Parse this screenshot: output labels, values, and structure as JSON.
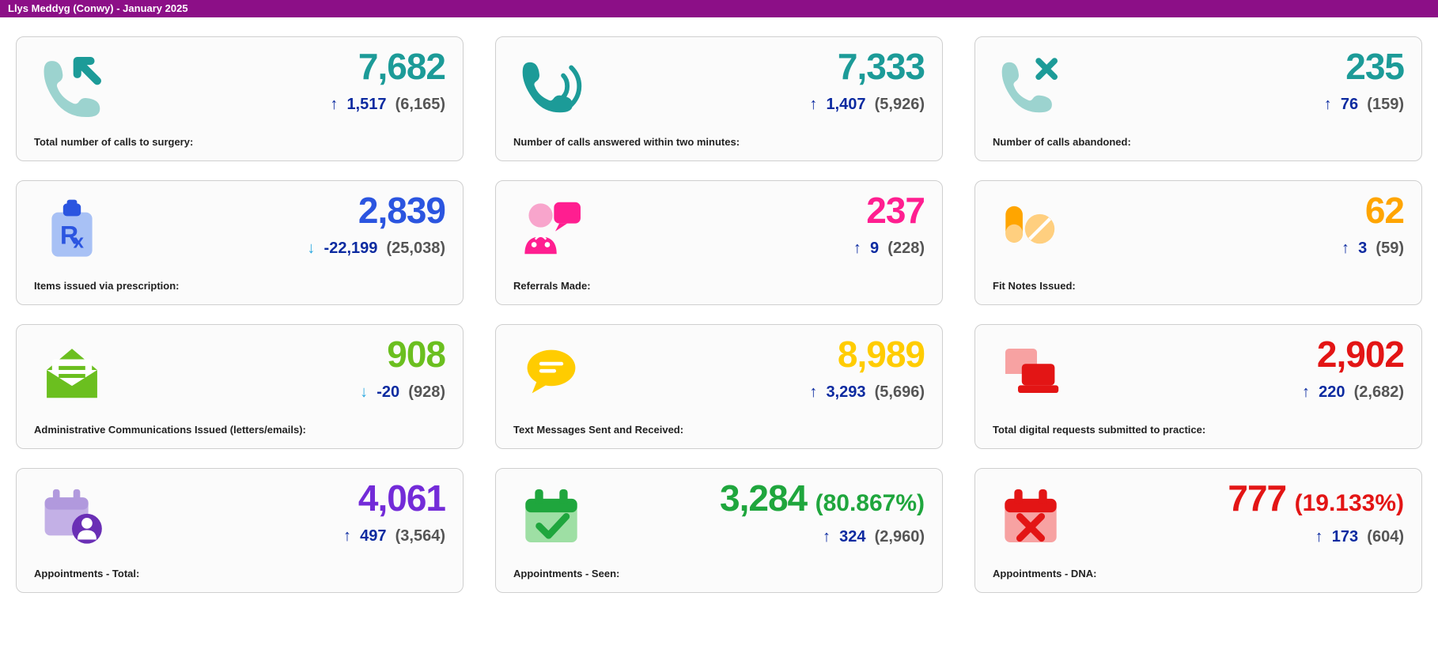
{
  "header": {
    "title": "Llys Meddyg (Conwy) - January 2025"
  },
  "palette": {
    "teal": "#1c9b98",
    "tealLight": "#9cd3cf",
    "blue": "#2b55e0",
    "blueArrow": "#0b2aa0",
    "downArrow": "#2aa8e0",
    "pink": "#ff1e90",
    "pinkLight": "#f8a5cc",
    "orange": "#ffa500",
    "orangeLight": "#ffcf7f",
    "green": "#6bbf1f",
    "yellow": "#ffcc00",
    "red": "#e31515",
    "redLight": "#f7a2a2",
    "purple": "#732bd8",
    "purpleLight": "#c3b0e6",
    "purpleDark": "#6a2fb5",
    "greenCheck": "#1fa63d",
    "greenCheckLight": "#9edfa4",
    "grey": "#555555"
  },
  "cards": [
    {
      "id": "calls-total",
      "icon": "phone-in",
      "value": "7,682",
      "valueColor": "#1c9b98",
      "direction": "up",
      "delta": "1,517",
      "prev": "(6,165)",
      "label": "Total number of calls to surgery:"
    },
    {
      "id": "calls-answered",
      "icon": "phone-wave",
      "value": "7,333",
      "valueColor": "#1c9b98",
      "direction": "up",
      "delta": "1,407",
      "prev": "(5,926)",
      "label": "Number of calls answered within two minutes:"
    },
    {
      "id": "calls-abandoned",
      "icon": "phone-x",
      "value": "235",
      "valueColor": "#1c9b98",
      "direction": "up",
      "delta": "76",
      "prev": "(159)",
      "label": "Number of calls abandoned:"
    },
    {
      "id": "prescriptions",
      "icon": "rx",
      "value": "2,839",
      "valueColor": "#2b55e0",
      "direction": "down",
      "delta": "-22,199",
      "prev": "(25,038)",
      "label": "Items issued via prescription:"
    },
    {
      "id": "referrals",
      "icon": "referral",
      "value": "237",
      "valueColor": "#ff1e90",
      "direction": "up",
      "delta": "9",
      "prev": "(228)",
      "label": "Referrals Made:"
    },
    {
      "id": "fit-notes",
      "icon": "pills",
      "value": "62",
      "valueColor": "#ffa500",
      "direction": "up",
      "delta": "3",
      "prev": "(59)",
      "label": "Fit Notes Issued:"
    },
    {
      "id": "admin-comms",
      "icon": "envelope",
      "value": "908",
      "valueColor": "#6bbf1f",
      "direction": "down",
      "delta": "-20",
      "prev": "(928)",
      "label": "Administrative Communications Issued (letters/emails):"
    },
    {
      "id": "text-messages",
      "icon": "chat",
      "value": "8,989",
      "valueColor": "#ffcc00",
      "direction": "up",
      "delta": "3,293",
      "prev": "(5,696)",
      "label": "Text Messages Sent and Received:"
    },
    {
      "id": "digital-requests",
      "icon": "laptop",
      "value": "2,902",
      "valueColor": "#e31515",
      "direction": "up",
      "delta": "220",
      "prev": "(2,682)",
      "label": "Total digital requests submitted to practice:"
    },
    {
      "id": "appts-total",
      "icon": "calendar-person",
      "value": "4,061",
      "valueColor": "#732bd8",
      "direction": "up",
      "delta": "497",
      "prev": "(3,564)",
      "label": "Appointments - Total:"
    },
    {
      "id": "appts-seen",
      "icon": "calendar-check",
      "value": "3,284",
      "pct": "(80.867%)",
      "valueColor": "#1fa63d",
      "direction": "up",
      "delta": "324",
      "prev": "(2,960)",
      "label": "Appointments - Seen:"
    },
    {
      "id": "appts-dna",
      "icon": "calendar-x",
      "value": "777",
      "pct": "(19.133%)",
      "valueColor": "#e31515",
      "direction": "up",
      "delta": "173",
      "prev": "(604)",
      "label": "Appointments - DNA:"
    }
  ]
}
